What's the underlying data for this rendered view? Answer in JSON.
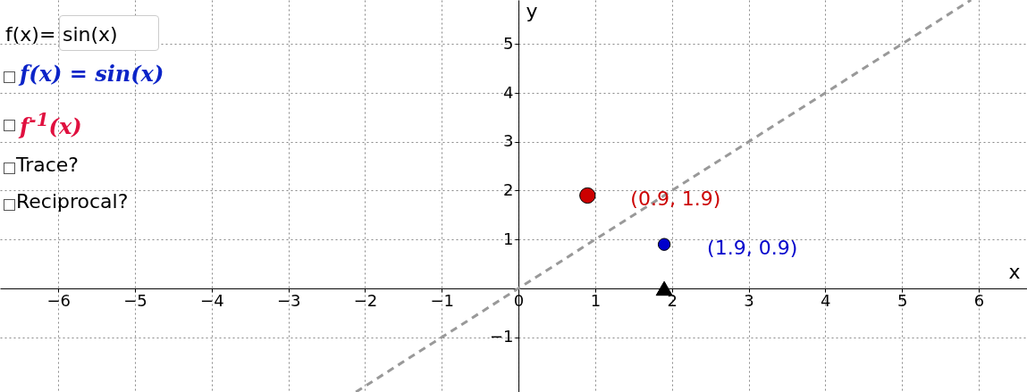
{
  "chart_data": {
    "type": "scatter",
    "xlabel": "x",
    "ylabel": "y",
    "xlim": [
      -6.76,
      6.63
    ],
    "ylim": [
      -2.12,
      5.9
    ],
    "xticks": [
      -6,
      -5,
      -4,
      -3,
      -2,
      -1,
      0,
      1,
      2,
      3,
      4,
      5,
      6
    ],
    "yticks": [
      -1,
      1,
      2,
      3,
      4,
      5
    ],
    "grid": true,
    "annotations": [
      "f(x)=",
      "sin(x)",
      "f(x) = sin(x)",
      "f$^{-1}$(x)",
      "Trace?",
      "Reciprocal?"
    ],
    "series": [
      {
        "type": "line",
        "color": "#999999",
        "line_style": "dashed",
        "marker": "none",
        "x": [
          -2.12,
          5.9
        ],
        "values": [
          -2.12,
          5.9
        ]
      },
      {
        "color": "#cc0000",
        "marker": "circle",
        "x": [
          0.9
        ],
        "values": [
          1.9
        ],
        "value_labels": [
          "(0.9, 1.9)"
        ]
      },
      {
        "color": "#0000cc",
        "marker": "circle",
        "x": [
          1.9
        ],
        "values": [
          0.9
        ],
        "value_labels": [
          "(1.9, 0.9)"
        ]
      },
      {
        "color": "#000000",
        "marker": "triangle",
        "x": [
          1.9
        ],
        "values": [
          0
        ]
      }
    ]
  }
}
